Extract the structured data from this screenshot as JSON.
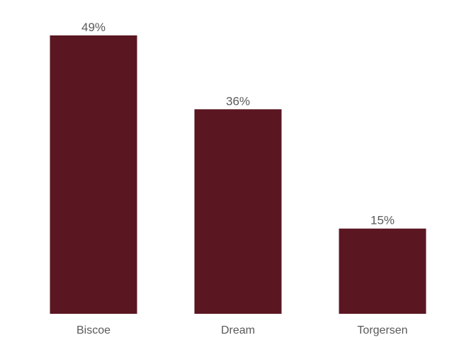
{
  "chart_data": {
    "type": "bar",
    "categories": [
      "Biscoe",
      "Dream",
      "Torgersen"
    ],
    "values": [
      49,
      36,
      15
    ],
    "value_labels": [
      "49%",
      "36%",
      "15%"
    ],
    "unit": "%",
    "title": "",
    "xlabel": "",
    "ylabel": "",
    "ylim": [
      0,
      49
    ],
    "grid": false,
    "legend": "none",
    "bar_color": "#5a1621",
    "label_color": "#595959"
  }
}
